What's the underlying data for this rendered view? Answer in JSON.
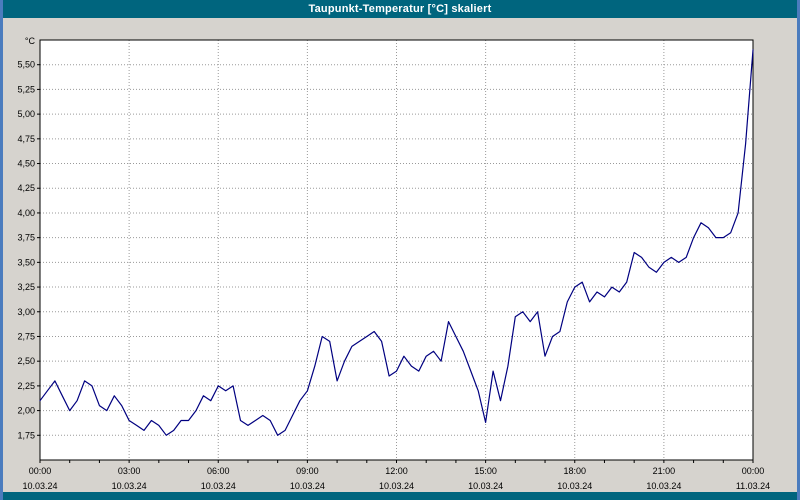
{
  "window": {
    "title": "Taupunkt-Temperatur [°C] skaliert"
  },
  "colors": {
    "title_bar": "#00657e",
    "frame": "#4b7cbe",
    "content_bg": "#d6d3ce",
    "plot_bg": "#ffffff",
    "line": "#000080",
    "grid": "#9a9a9a",
    "axis": "#000000",
    "tick_text": "#000000"
  },
  "chart_data": {
    "type": "line",
    "title": "Taupunkt-Temperatur [°C] skaliert",
    "ylabel": "°C",
    "x_unit": "time of day over 24h (10.03.24 00:00 to 11.03.24 00:00)",
    "x_range_hours": [
      0,
      24
    ],
    "ylim": [
      1.5,
      5.75
    ],
    "yticks": [
      1.75,
      2.0,
      2.25,
      2.5,
      2.75,
      3.0,
      3.25,
      3.5,
      3.75,
      4.0,
      4.25,
      4.5,
      4.75,
      5.0,
      5.25,
      5.5
    ],
    "ytick_labels": [
      "1,75",
      "2,00",
      "2,25",
      "2,50",
      "2,75",
      "3,00",
      "3,25",
      "3,50",
      "3,75",
      "4,00",
      "4,25",
      "4,50",
      "4,75",
      "5,00",
      "5,25",
      "5,50"
    ],
    "xticks_hours": [
      0,
      3,
      6,
      9,
      12,
      15,
      18,
      21,
      24
    ],
    "xtick_labels": [
      "00:00",
      "03:00",
      "06:00",
      "09:00",
      "12:00",
      "15:00",
      "18:00",
      "21:00",
      "00:00"
    ],
    "xdate_labels": [
      "10.03.24",
      "10.03.24",
      "10.03.24",
      "10.03.24",
      "10.03.24",
      "10.03.24",
      "10.03.24",
      "10.03.24",
      "11.03.24"
    ],
    "minor_xtick_every_hours": 1,
    "grid": "dotted",
    "legend": "none",
    "series": [
      {
        "name": "Taupunkt-Temperatur",
        "color": "#000080",
        "sample_interval_hours": 0.25,
        "values": [
          2.1,
          2.2,
          2.3,
          2.15,
          2.0,
          2.1,
          2.3,
          2.25,
          2.05,
          2.0,
          2.15,
          2.05,
          1.9,
          1.85,
          1.8,
          1.9,
          1.85,
          1.75,
          1.8,
          1.9,
          1.9,
          2.0,
          2.15,
          2.1,
          2.25,
          2.2,
          2.25,
          1.9,
          1.85,
          1.9,
          1.95,
          1.9,
          1.75,
          1.8,
          1.95,
          2.1,
          2.2,
          2.45,
          2.75,
          2.7,
          2.3,
          2.5,
          2.65,
          2.7,
          2.75,
          2.8,
          2.7,
          2.35,
          2.4,
          2.55,
          2.45,
          2.4,
          2.55,
          2.6,
          2.5,
          2.9,
          2.75,
          2.6,
          2.4,
          2.2,
          1.88,
          2.4,
          2.1,
          2.45,
          2.95,
          3.0,
          2.9,
          3.0,
          2.55,
          2.75,
          2.8,
          3.1,
          3.25,
          3.3,
          3.1,
          3.2,
          3.15,
          3.25,
          3.2,
          3.3,
          3.6,
          3.55,
          3.45,
          3.4,
          3.5,
          3.55,
          3.5,
          3.55,
          3.75,
          3.9,
          3.85,
          3.75,
          3.75,
          3.8,
          4.0,
          4.7,
          5.65
        ]
      }
    ]
  }
}
